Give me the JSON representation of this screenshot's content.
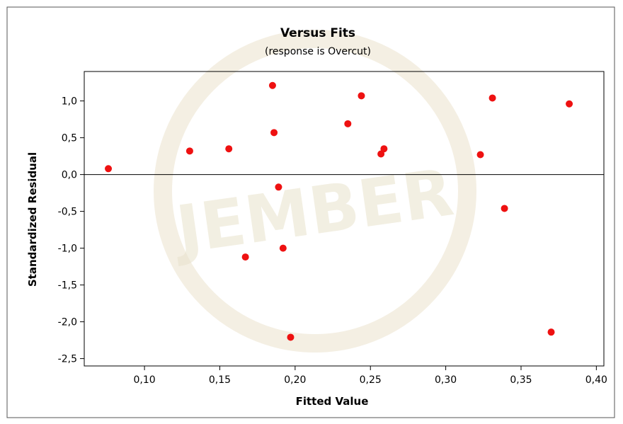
{
  "colors": {
    "point": "#ee1111",
    "axis": "#000000",
    "frame": "#444444",
    "background": "#ffffff",
    "watermark": "#e6dcc0"
  },
  "watermark": {
    "text": "JEMBER"
  },
  "chart_data": {
    "type": "scatter",
    "title": "Versus Fits",
    "subtitle": "(response is Overcut)",
    "xlabel": "Fitted Value",
    "ylabel": "Standardized Residual",
    "xlim": [
      0.06,
      0.405
    ],
    "ylim": [
      -2.6,
      1.4
    ],
    "xticks": [
      0.1,
      0.15,
      0.2,
      0.25,
      0.3,
      0.35,
      0.4
    ],
    "xtick_labels": [
      "0,10",
      "0,15",
      "0,20",
      "0,25",
      "0,30",
      "0,35",
      "0,40"
    ],
    "yticks": [
      1.0,
      0.5,
      0.0,
      -0.5,
      -1.0,
      -1.5,
      -2.0,
      -2.5
    ],
    "ytick_labels": [
      "1,0",
      "0,5",
      "0,0",
      "-0,5",
      "-1,0",
      "-1,5",
      "-2,0",
      "-2,5"
    ],
    "reference_line_y": 0,
    "grid": false,
    "x": [
      0.076,
      0.13,
      0.156,
      0.167,
      0.185,
      0.186,
      0.189,
      0.192,
      0.197,
      0.235,
      0.244,
      0.257,
      0.259,
      0.323,
      0.331,
      0.339,
      0.37,
      0.382
    ],
    "y": [
      0.08,
      0.32,
      0.35,
      -1.12,
      1.21,
      0.57,
      -0.17,
      -1.0,
      -2.21,
      0.69,
      1.07,
      0.28,
      0.35,
      0.27,
      1.04,
      -0.46,
      -2.14,
      0.96
    ]
  }
}
